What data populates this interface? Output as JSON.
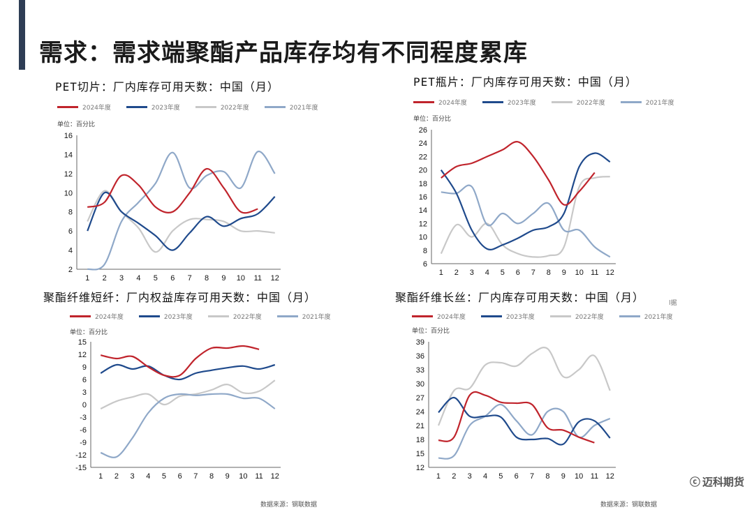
{
  "page": {
    "title": "需求：需求端聚酯产品库存均有不同程度累库",
    "source_left": "数据来源：钢联数据",
    "source_right": "数据来源：钢联数据",
    "brand": "迈科期货",
    "brand_mark": "ⓒ",
    "cut_text": "l据"
  },
  "colors": {
    "y2024": "#c0242c",
    "y2023": "#1f4a8c",
    "y2022": "#c8c8c8",
    "y2021": "#8fa8c8",
    "accent": "#2e3d55"
  },
  "chart_data": [
    {
      "type": "line",
      "title": "PET切片：厂内库存可用天数：中国（月）",
      "unit": "单位：百分比",
      "categories": [
        "1",
        "2",
        "3",
        "4",
        "5",
        "6",
        "7",
        "8",
        "9",
        "10",
        "11",
        "12"
      ],
      "ylim": [
        2,
        16
      ],
      "yticks": [
        "2",
        "4",
        "6",
        "8",
        "10",
        "12",
        "14",
        "16"
      ],
      "grid": false,
      "legend": "top",
      "series": [
        {
          "name": "2024年度",
          "values": [
            8.5,
            9.0,
            11.8,
            10.8,
            8.5,
            8.0,
            10.0,
            12.5,
            10.5,
            8.0,
            8.3,
            null
          ]
        },
        {
          "name": "2023年度",
          "values": [
            6.0,
            10.0,
            8.0,
            6.8,
            5.5,
            4.0,
            5.8,
            7.5,
            6.5,
            7.3,
            7.8,
            9.6
          ]
        },
        {
          "name": "2022年度",
          "values": [
            7.0,
            10.2,
            8.0,
            6.3,
            3.8,
            6.0,
            7.2,
            7.2,
            7.0,
            6.0,
            6.0,
            5.8
          ]
        },
        {
          "name": "2021年度",
          "values": [
            2.0,
            2.5,
            7.0,
            9.0,
            11.0,
            14.2,
            10.5,
            11.8,
            12.2,
            10.5,
            14.3,
            12.0
          ]
        }
      ]
    },
    {
      "type": "line",
      "title": "PET瓶片：厂内库存可用天数：中国（月）",
      "unit": "单位：百分比",
      "categories": [
        "1",
        "2",
        "3",
        "4",
        "5",
        "6",
        "7",
        "8",
        "9",
        "10",
        "11",
        "12"
      ],
      "ylim": [
        6,
        26
      ],
      "yticks": [
        "6",
        "8",
        "10",
        "12",
        "14",
        "16",
        "18",
        "20",
        "22",
        "24",
        "26"
      ],
      "grid": false,
      "legend": "top",
      "series": [
        {
          "name": "2024年度",
          "values": [
            18.8,
            20.5,
            21.0,
            22.0,
            23.0,
            24.2,
            22.0,
            18.5,
            14.8,
            16.8,
            19.6,
            null
          ]
        },
        {
          "name": "2023年度",
          "values": [
            20.0,
            16.5,
            11.0,
            8.2,
            8.8,
            9.8,
            11.0,
            11.5,
            13.5,
            20.5,
            22.5,
            21.2
          ]
        },
        {
          "name": "2022年度",
          "values": [
            7.5,
            11.8,
            10.0,
            12.0,
            8.8,
            7.5,
            7.0,
            7.2,
            8.5,
            17.5,
            18.8,
            19.0
          ]
        },
        {
          "name": "2021年度",
          "values": [
            16.7,
            16.5,
            17.5,
            11.8,
            13.5,
            12.0,
            13.5,
            15.0,
            11.0,
            11.0,
            8.5,
            7.0
          ]
        }
      ]
    },
    {
      "type": "line",
      "title": "聚酯纤维短纤：厂内权益库存可用天数：中国（月）",
      "unit": "单位：百分比",
      "categories": [
        "1",
        "2",
        "3",
        "4",
        "5",
        "6",
        "7",
        "8",
        "9",
        "10",
        "11",
        "12"
      ],
      "ylim": [
        -15,
        15
      ],
      "yticks": [
        "-15",
        "-12",
        "-9",
        "-6",
        "-3",
        "0",
        "3",
        "6",
        "9",
        "12",
        "15"
      ],
      "grid": false,
      "legend": "top",
      "series": [
        {
          "name": "2024年度",
          "values": [
            11.8,
            11.0,
            11.5,
            9.0,
            7.0,
            7.0,
            11.0,
            13.5,
            13.5,
            14.0,
            13.2,
            null
          ]
        },
        {
          "name": "2023年度",
          "values": [
            7.5,
            9.5,
            8.5,
            9.2,
            7.0,
            6.0,
            7.5,
            8.2,
            8.8,
            9.2,
            8.5,
            9.5
          ]
        },
        {
          "name": "2022年度",
          "values": [
            -1.0,
            0.8,
            1.8,
            2.5,
            0.0,
            2.0,
            2.5,
            3.5,
            4.8,
            2.8,
            3.2,
            5.8
          ]
        },
        {
          "name": "2021年度",
          "values": [
            -11.5,
            -12.5,
            -8.0,
            -2.0,
            1.5,
            2.5,
            2.2,
            2.5,
            2.5,
            1.5,
            1.5,
            -1.0
          ]
        }
      ]
    },
    {
      "type": "line",
      "title": "聚酯纤维长丝：厂内库存可用天数：中国（月）",
      "unit": "单位：百分比",
      "categories": [
        "1",
        "2",
        "3",
        "4",
        "5",
        "6",
        "7",
        "8",
        "9",
        "10",
        "11",
        "12"
      ],
      "ylim": [
        12,
        39
      ],
      "yticks": [
        "12",
        "15",
        "18",
        "21",
        "24",
        "27",
        "30",
        "33",
        "36",
        "39"
      ],
      "grid": false,
      "legend": "top",
      "series": [
        {
          "name": "2024年度",
          "values": [
            17.8,
            18.5,
            27.5,
            27.5,
            26.0,
            25.8,
            25.5,
            20.5,
            20.0,
            18.5,
            17.3,
            null
          ]
        },
        {
          "name": "2023年度",
          "values": [
            23.8,
            27.0,
            23.0,
            23.0,
            22.8,
            18.5,
            18.0,
            18.2,
            17.0,
            21.8,
            22.0,
            18.3
          ]
        },
        {
          "name": "2022年度",
          "values": [
            21.0,
            28.5,
            29.0,
            34.0,
            34.5,
            33.8,
            36.5,
            37.5,
            31.5,
            33.0,
            36.0,
            28.5
          ]
        },
        {
          "name": "2021年度",
          "values": [
            14.0,
            14.5,
            21.0,
            23.0,
            25.5,
            22.0,
            19.0,
            24.0,
            24.0,
            18.5,
            21.0,
            22.5
          ]
        }
      ]
    }
  ]
}
